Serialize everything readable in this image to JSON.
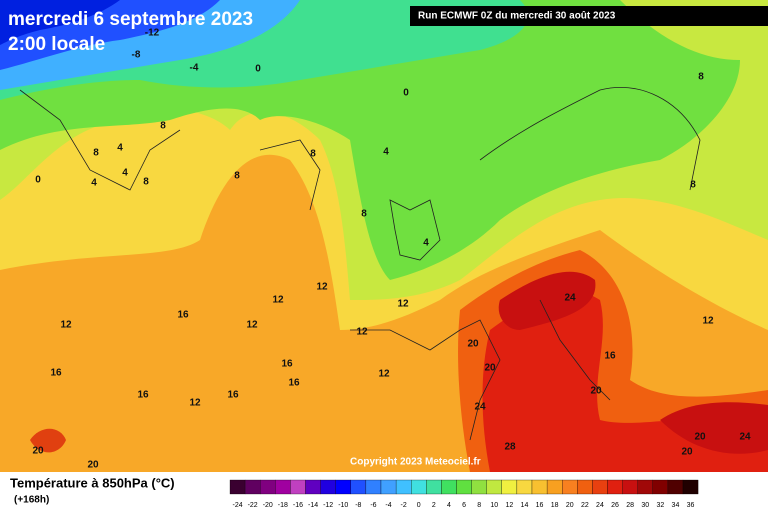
{
  "header": {
    "date": "mercredi 6 septembre 2023",
    "time": "2:00 locale",
    "run": "Run ECMWF 0Z du mercredi 30 août 2023",
    "copyright": "Copyright 2023 Meteociel.fr"
  },
  "legend": {
    "title": "Température à 850hPa (°C)",
    "lead": "(+168h)",
    "values": [
      -24,
      -22,
      -20,
      -18,
      -16,
      -14,
      -12,
      -10,
      -8,
      -6,
      -4,
      -2,
      0,
      2,
      4,
      6,
      8,
      10,
      12,
      14,
      16,
      18,
      20,
      22,
      24,
      26,
      28,
      30,
      32,
      34,
      36
    ],
    "colors": [
      "#3a0030",
      "#600060",
      "#800080",
      "#a000a0",
      "#c040c0",
      "#6000c0",
      "#2000e0",
      "#0000ff",
      "#2050ff",
      "#3080ff",
      "#40a0ff",
      "#40c0ff",
      "#40e0e0",
      "#40e0a0",
      "#40e060",
      "#60e040",
      "#90e040",
      "#c0e840",
      "#f0f040",
      "#f8d840",
      "#f8c030",
      "#f8a020",
      "#f88020",
      "#f06010",
      "#e84010",
      "#e02010",
      "#c81010",
      "#a00808",
      "#800000",
      "#500000",
      "#200000"
    ]
  },
  "contour_labels": [
    -12,
    -8,
    -4,
    0,
    0,
    4,
    8,
    8,
    4,
    4,
    8,
    0,
    8,
    8,
    4,
    8,
    4,
    8,
    8,
    12,
    12,
    12,
    16,
    12,
    12,
    12,
    12,
    16,
    16,
    16,
    16,
    16,
    12,
    20,
    20,
    24,
    24,
    16,
    20,
    20,
    20,
    28,
    20,
    24,
    20,
    12
  ]
}
